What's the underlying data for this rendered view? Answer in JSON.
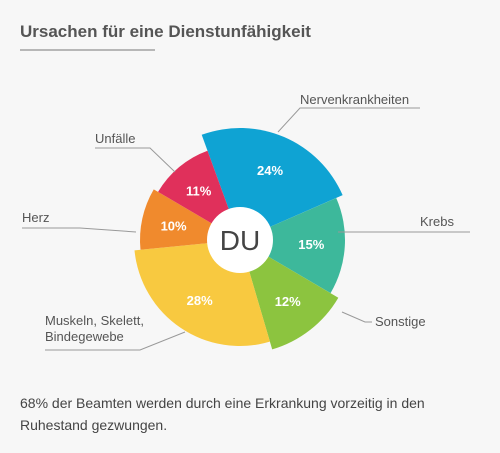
{
  "chart_data": {
    "type": "pie",
    "title": "Ursachen für eine Dienstunfähigkeit",
    "center_label": "DU",
    "categories": [
      "Nervenkrankheiten",
      "Krebs",
      "Sonstige",
      "Muskeln, Skelett, Bindegewebe",
      "Herz",
      "Unfälle"
    ],
    "values": [
      24,
      15,
      12,
      28,
      10,
      11
    ],
    "value_labels": [
      "24%",
      "15%",
      "12%",
      "28%",
      "10%",
      "11%"
    ],
    "colors": [
      "#0fa3d3",
      "#3db89b",
      "#8cc43f",
      "#f8c940",
      "#f08a2d",
      "#e0305b"
    ],
    "footnote": "68% der Beamten werden durch eine Erkrankung vorzeitig in den Ruhestand gezwungen."
  }
}
